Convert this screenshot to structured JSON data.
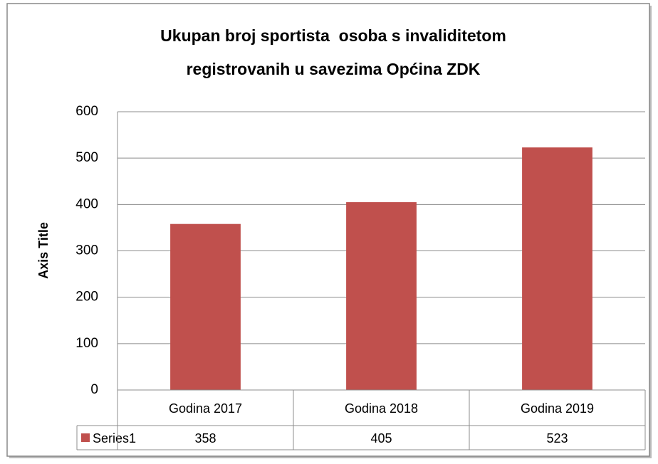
{
  "chart_data": {
    "type": "bar",
    "title": [
      "Ukupan broj sportista  osoba s invaliditetom",
      "registrovanih u savezima Općina ZDK"
    ],
    "y_axis_label": "Axis Title",
    "categories": [
      "Godina 2017",
      "Godina 2018",
      "Godina 2019"
    ],
    "series": [
      {
        "name": "Series1",
        "color": "#c0504d",
        "values": [
          358,
          405,
          523
        ]
      }
    ],
    "ylim": [
      0,
      600
    ],
    "yticks": [
      0,
      100,
      200,
      300,
      400,
      500,
      600
    ],
    "grid": true,
    "data_table": true
  }
}
